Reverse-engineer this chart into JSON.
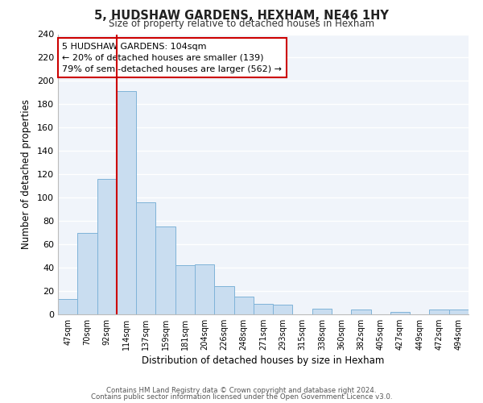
{
  "title": "5, HUDSHAW GARDENS, HEXHAM, NE46 1HY",
  "subtitle": "Size of property relative to detached houses in Hexham",
  "xlabel": "Distribution of detached houses by size in Hexham",
  "ylabel": "Number of detached properties",
  "bar_labels": [
    "47sqm",
    "70sqm",
    "92sqm",
    "114sqm",
    "137sqm",
    "159sqm",
    "181sqm",
    "204sqm",
    "226sqm",
    "248sqm",
    "271sqm",
    "293sqm",
    "315sqm",
    "338sqm",
    "360sqm",
    "382sqm",
    "405sqm",
    "427sqm",
    "449sqm",
    "472sqm",
    "494sqm"
  ],
  "bar_values": [
    13,
    70,
    116,
    191,
    96,
    75,
    42,
    43,
    24,
    15,
    9,
    8,
    0,
    5,
    0,
    4,
    0,
    2,
    0,
    4,
    4
  ],
  "bar_color": "#c9ddf0",
  "bar_edge_color": "#7fb3d8",
  "ylim": [
    0,
    240
  ],
  "yticks": [
    0,
    20,
    40,
    60,
    80,
    100,
    120,
    140,
    160,
    180,
    200,
    220,
    240
  ],
  "red_line_x": 3,
  "annotation_title": "5 HUDSHAW GARDENS: 104sqm",
  "annotation_line1": "← 20% of detached houses are smaller (139)",
  "annotation_line2": "79% of semi-detached houses are larger (562) →",
  "annotation_box_color": "#ffffff",
  "annotation_box_edge": "#cc0000",
  "red_line_color": "#cc0000",
  "footer1": "Contains HM Land Registry data © Crown copyright and database right 2024.",
  "footer2": "Contains public sector information licensed under the Open Government Licence v3.0.",
  "bg_color": "#f0f4fa"
}
